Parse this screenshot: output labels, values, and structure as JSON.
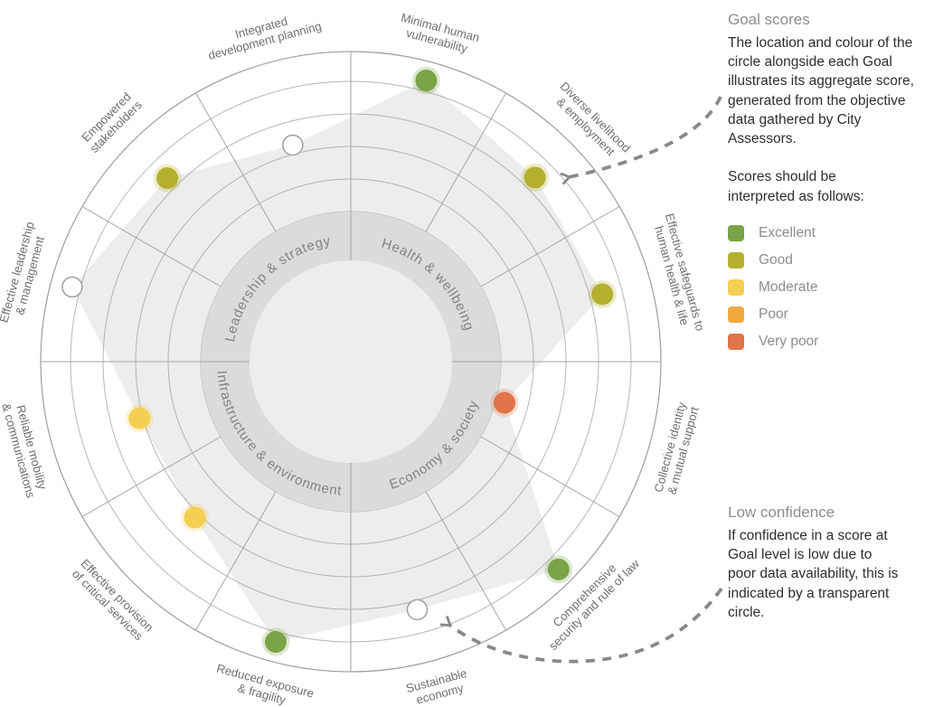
{
  "palette": {
    "excellent": "#7ba347",
    "good": "#b4b02f",
    "moderate": "#f4cf52",
    "poor": "#f2a840",
    "very_poor": "#e17448"
  },
  "panel": {
    "goal_scores": {
      "title": "Goal scores",
      "body": "The location and colour of the circle alongside each Goal illustrates its aggregate score, generated from the objective data gathered by City Assessors."
    },
    "interpret_intro": "Scores should be interpreted as follows:",
    "legend": {
      "items": [
        {
          "key": "excellent",
          "label": "Excellent"
        },
        {
          "key": "good",
          "label": "Good"
        },
        {
          "key": "moderate",
          "label": "Moderate"
        },
        {
          "key": "poor",
          "label": "Poor"
        },
        {
          "key": "very_poor",
          "label": "Very poor"
        }
      ]
    },
    "low_confidence": {
      "title": "Low confidence",
      "body": "If confidence in a score at Goal level is low due to poor data availability, this is indicated by a transparent circle."
    }
  },
  "chart_data": {
    "type": "radial-goal-wheel",
    "score_scale_inner_to_outer": [
      "Very poor",
      "Poor",
      "Moderate",
      "Good",
      "Excellent"
    ],
    "quadrants": [
      {
        "label": "Health & wellbeing",
        "start_angle": 0,
        "end_angle": 90
      },
      {
        "label": "Economy & society",
        "start_angle": 90,
        "end_angle": 180
      },
      {
        "label": "Infrastructure & environment",
        "start_angle": 180,
        "end_angle": 270
      },
      {
        "label": "Leadership & strategy",
        "start_angle": 270,
        "end_angle": 360
      }
    ],
    "goals": [
      {
        "label": "Minimal human vulnerability",
        "label_lines": [
          "Minimal human",
          "vulnerability"
        ],
        "rating": "Excellent",
        "score_ring": 5,
        "low_confidence": false,
        "radius_px": 322
      },
      {
        "label": "Diverse livelihood & employment",
        "label_lines": [
          "Diverse livelihood",
          "& employment"
        ],
        "rating": "Good",
        "score_ring": 4,
        "low_confidence": false,
        "radius_px": 288
      },
      {
        "label": "Effective safeguards to human health & life",
        "label_lines": [
          "Effective safeguards to",
          "human health & life"
        ],
        "rating": "Good",
        "score_ring": 4,
        "low_confidence": false,
        "radius_px": 288
      },
      {
        "label": "Collective identity & mutual support",
        "label_lines": [
          "Collective identity",
          "& mutual support"
        ],
        "rating": "Very poor",
        "score_ring": 1,
        "low_confidence": false,
        "radius_px": 176
      },
      {
        "label": "Comprehensive security and rule of law",
        "label_lines": [
          "Comprehensive",
          "security and rule of law"
        ],
        "rating": "Excellent",
        "score_ring": 5,
        "low_confidence": false,
        "radius_px": 325
      },
      {
        "label": "Sustainable economy",
        "label_lines": [
          "Sustainable",
          "economy"
        ],
        "rating": null,
        "score_ring": 4,
        "low_confidence": true,
        "radius_px": 284
      },
      {
        "label": "Reduced exposure & fragility",
        "label_lines": [
          "Reduced exposure",
          "& fragility"
        ],
        "rating": "Excellent",
        "score_ring": 5,
        "low_confidence": false,
        "radius_px": 321
      },
      {
        "label": "Effective provision of critical services",
        "label_lines": [
          "Effective provision",
          "of critical services"
        ],
        "rating": "Moderate",
        "score_ring": 3,
        "low_confidence": false,
        "radius_px": 244
      },
      {
        "label": "Reliable mobility & communications",
        "label_lines": [
          "Reliable mobility",
          "& communications"
        ],
        "rating": "Moderate",
        "score_ring": 3,
        "low_confidence": false,
        "radius_px": 242
      },
      {
        "label": "Effective leadership & management",
        "label_lines": [
          "Effective leadership",
          "& management"
        ],
        "rating": null,
        "score_ring": 5,
        "low_confidence": true,
        "radius_px": 319
      },
      {
        "label": "Empowered stakeholders",
        "label_lines": [
          "Empowered",
          "stakeholders"
        ],
        "rating": "Good",
        "score_ring": 4,
        "low_confidence": false,
        "radius_px": 287
      },
      {
        "label": "Integrated development planning",
        "label_lines": [
          "Integrated",
          "development planning"
        ],
        "rating": null,
        "score_ring": 3,
        "low_confidence": true,
        "radius_px": 248
      }
    ]
  }
}
